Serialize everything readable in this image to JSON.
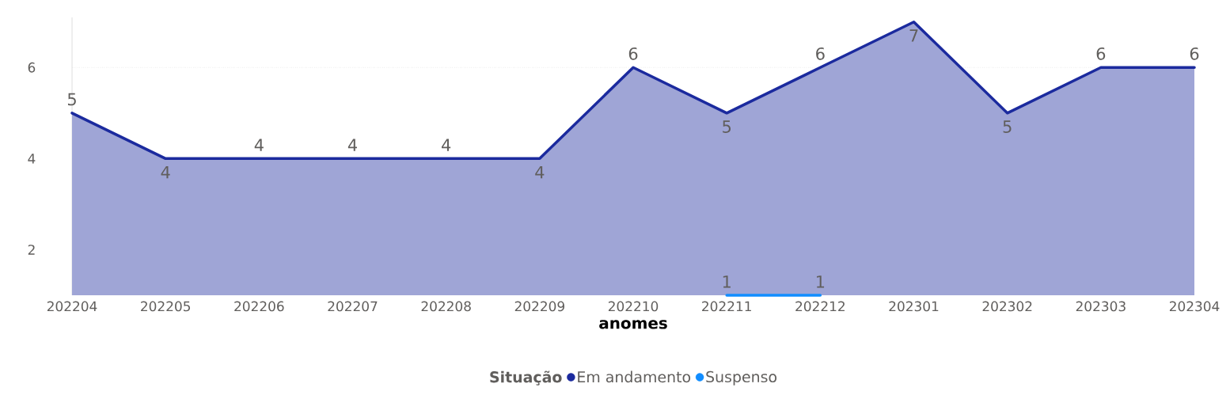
{
  "chart_data": {
    "type": "area",
    "xlabel": "anomes",
    "legend_title": "Situação",
    "categories": [
      "202204",
      "202205",
      "202206",
      "202207",
      "202208",
      "202209",
      "202210",
      "202211",
      "202212",
      "202301",
      "202302",
      "202303",
      "202304"
    ],
    "series": [
      {
        "name": "Em andamento",
        "color": "#1b2a9e",
        "values": [
          5,
          4,
          4,
          4,
          4,
          4,
          6,
          5,
          6,
          7,
          5,
          6,
          6
        ]
      },
      {
        "name": "Suspenso",
        "color": "#118dff",
        "type": "line",
        "values": [
          null,
          null,
          null,
          null,
          null,
          null,
          null,
          1,
          1,
          null,
          null,
          null,
          null
        ]
      }
    ],
    "ylim": [
      1,
      7.1
    ],
    "yticks": [
      2,
      4,
      6
    ],
    "grid": "y",
    "data_labels": true,
    "legend": "bottom"
  }
}
